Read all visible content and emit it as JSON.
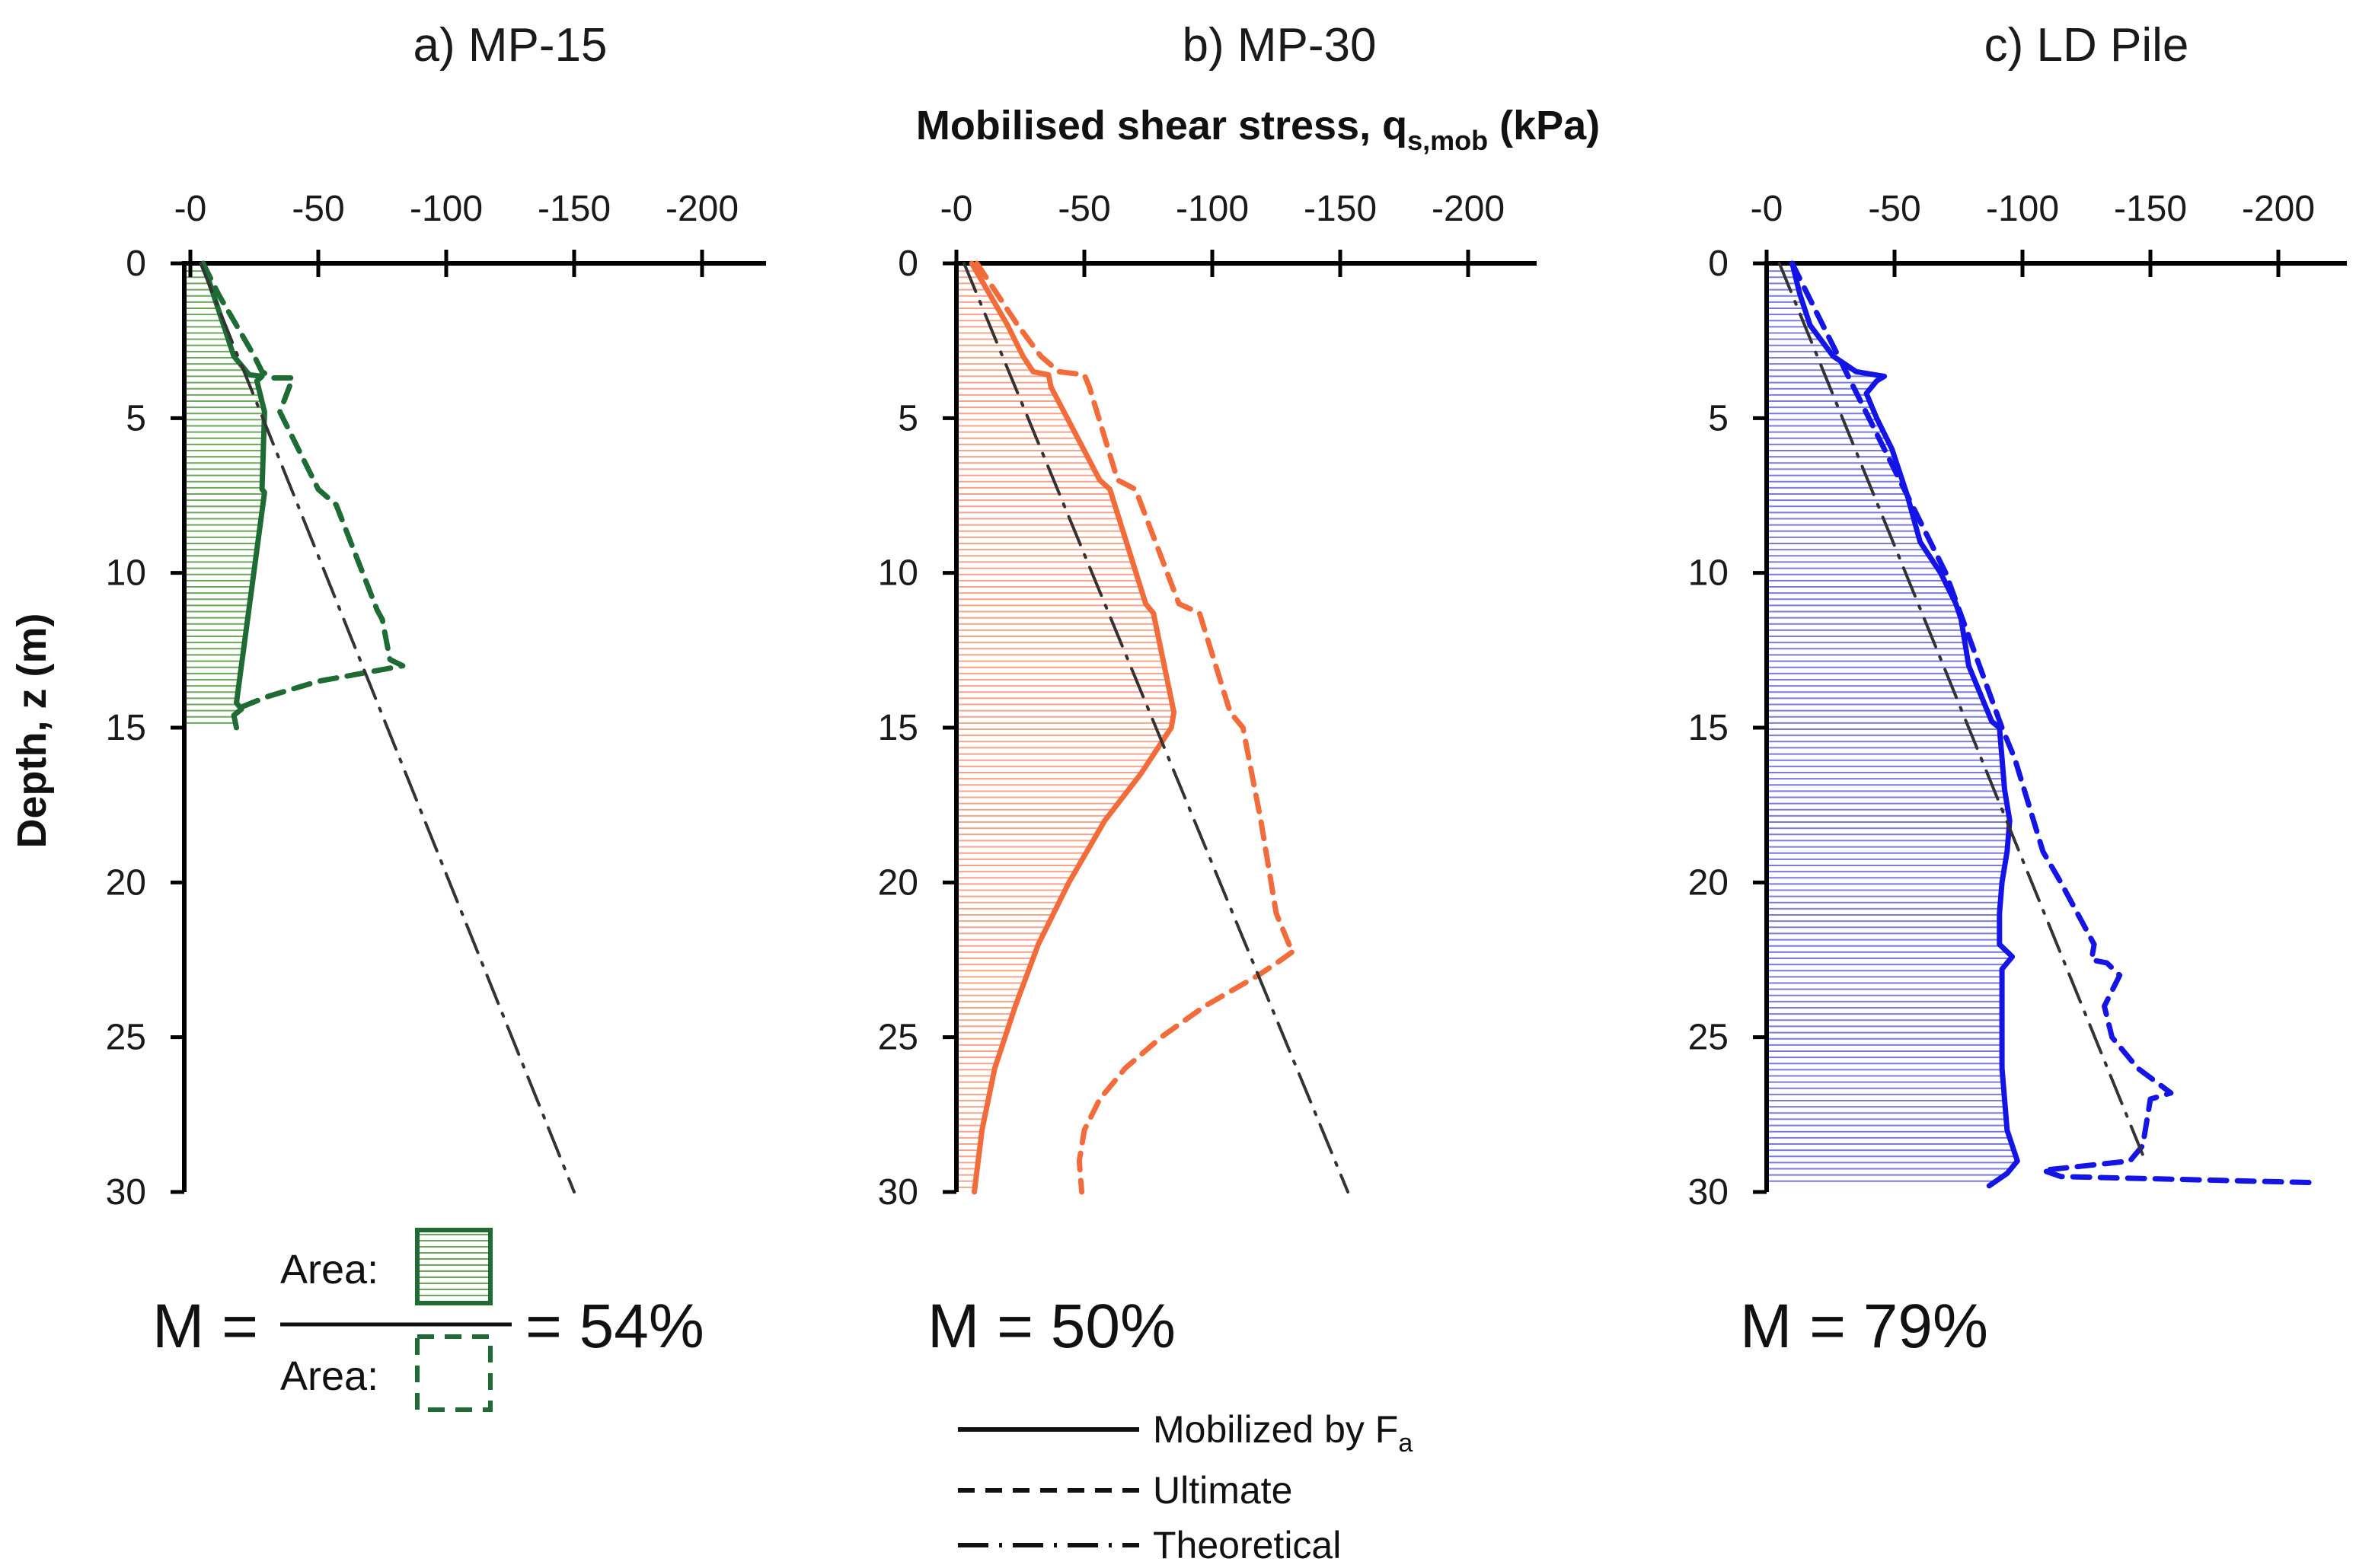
{
  "chart_data": [
    {
      "type": "line",
      "title": "a) MP-15",
      "x_ticks": [
        "-0",
        "-50",
        "-100",
        "-150",
        "-200"
      ],
      "y_ticks": [
        "0",
        "5",
        "10",
        "15",
        "20",
        "25",
        "30"
      ],
      "xlim": [
        0,
        -225
      ],
      "ylim": [
        0,
        30
      ],
      "colors": {
        "line": "#1e6b34",
        "fill": "#6aa85a"
      },
      "series": [
        {
          "style": "solid",
          "z": [
            0,
            1,
            2,
            3,
            3.6,
            3.65,
            3.8,
            4.8,
            7.3,
            7.4,
            14.2,
            14.4,
            14.6,
            15
          ],
          "q": [
            -5,
            -9,
            -13,
            -17,
            -23,
            -28,
            -26,
            -29,
            -28,
            -29,
            -18,
            -20,
            -17,
            -18
          ]
        },
        {
          "style": "dashed",
          "z": [
            0,
            1,
            2,
            3,
            3.5,
            3.7,
            3.7,
            4.8,
            7.3,
            7.8,
            11.2,
            11.5,
            12.8,
            13.0,
            13.2,
            13.5,
            14.0,
            14.4
          ],
          "q": [
            -5,
            -11,
            -18,
            -25,
            -28,
            -32,
            -40,
            -35,
            -50,
            -57,
            -73,
            -75,
            -78,
            -83,
            -70,
            -50,
            -30,
            -18
          ]
        },
        {
          "style": "dashdot",
          "z": [
            0,
            30
          ],
          "q": [
            -4,
            -150
          ]
        }
      ],
      "annotation": {
        "m_label": "M = ",
        "m_value": "= 54%",
        "numerator": "Area:",
        "denominator": "Area:"
      }
    },
    {
      "type": "line",
      "title": "b) MP-30",
      "x_ticks": [
        "-0",
        "-50",
        "-100",
        "-150",
        "-200"
      ],
      "y_ticks": [
        "0",
        "5",
        "10",
        "15",
        "20",
        "25",
        "30"
      ],
      "xlim": [
        0,
        -225
      ],
      "ylim": [
        0,
        30
      ],
      "colors": {
        "line": "#f26b3a",
        "fill": "#f5a48a"
      },
      "series": [
        {
          "style": "solid",
          "z": [
            0,
            1,
            2,
            3,
            3.5,
            3.6,
            4.0,
            7.0,
            7.3,
            11,
            11.3,
            14.5,
            15,
            16.5,
            18,
            20,
            22,
            24,
            26,
            28,
            30
          ],
          "q": [
            -6,
            -13,
            -20,
            -26,
            -30,
            -36,
            -37,
            -56,
            -60,
            -74,
            -77,
            -85,
            -84,
            -72,
            -58,
            -44,
            -32,
            -23,
            -15,
            -10,
            -7
          ]
        },
        {
          "style": "dashed",
          "z": [
            0,
            1,
            2,
            3,
            3.5,
            3.6,
            4.0,
            7.0,
            7.3,
            11,
            11.3,
            14.5,
            15,
            18,
            21,
            22,
            22.2,
            22.5,
            23,
            24,
            25,
            26,
            27,
            28,
            29,
            30
          ],
          "q": [
            -8,
            -16,
            -24,
            -33,
            -40,
            -50,
            -52,
            -63,
            -70,
            -87,
            -95,
            -107,
            -112,
            -119,
            -125,
            -130,
            -132,
            -127,
            -118,
            -97,
            -80,
            -66,
            -56,
            -50,
            -48,
            -49
          ]
        },
        {
          "style": "dashdot",
          "z": [
            0,
            30
          ],
          "q": [
            -3,
            -153
          ]
        }
      ],
      "annotation": {
        "m_value": "M = 50%"
      }
    },
    {
      "type": "line",
      "title": "c) LD Pile",
      "x_ticks": [
        "-0",
        "-50",
        "-100",
        "-150",
        "-200"
      ],
      "y_ticks": [
        "0",
        "5",
        "10",
        "15",
        "20",
        "25",
        "30"
      ],
      "xlim": [
        0,
        -225
      ],
      "ylim": [
        0,
        30
      ],
      "colors": {
        "line": "#1414e6",
        "fill": "#7b7bdc"
      },
      "series": [
        {
          "style": "solid",
          "z": [
            0,
            1,
            2,
            3,
            3.5,
            3.65,
            3.8,
            4.2,
            5,
            6,
            7,
            7.5,
            9,
            10,
            11,
            11.5,
            13,
            14,
            14.8,
            15,
            17,
            18,
            19,
            20,
            21,
            22,
            22.4,
            22.8,
            24,
            26,
            28,
            29,
            29.4,
            29.8
          ],
          "q": [
            -10,
            -13,
            -17,
            -26,
            -35,
            -46,
            -43,
            -39,
            -43,
            -49,
            -53,
            -55,
            -60,
            -68,
            -74,
            -76,
            -79,
            -84,
            -88,
            -91,
            -93,
            -95,
            -94,
            -92,
            -91,
            -91,
            -96,
            -92,
            -92,
            -92,
            -94,
            -98,
            -94,
            -87
          ]
        },
        {
          "style": "dashed",
          "z": [
            0,
            10,
            15,
            16,
            19,
            20,
            22,
            22.5,
            22.6,
            23,
            24,
            25,
            26,
            26.8,
            27,
            28,
            28.5,
            29,
            29.3,
            29.5,
            29.7
          ],
          "q": [
            -10,
            -70,
            -92,
            -97,
            -108,
            -115,
            -128,
            -127,
            -133,
            -138,
            -132,
            -135,
            -145,
            -158,
            -150,
            -148,
            -147,
            -142,
            -108,
            -115,
            -215
          ]
        },
        {
          "style": "dashdot",
          "z": [
            0,
            29
          ],
          "q": [
            -5,
            -148
          ]
        }
      ],
      "annotation": {
        "m_value": "M = 79%"
      }
    }
  ],
  "shared": {
    "x_axis_title_main": "Mobilised shear stress, q",
    "x_axis_title_sub": "s,mob",
    "x_axis_title_unit": " (kPa)",
    "y_axis_title": "Depth, z (m)"
  },
  "legend": {
    "items": [
      {
        "label": "Mobilized by F",
        "sub": "a",
        "style": "solid"
      },
      {
        "label": "Ultimate",
        "sub": "",
        "style": "dashed"
      },
      {
        "label": "Theoretical",
        "sub": "",
        "style": "dashdot"
      }
    ]
  }
}
